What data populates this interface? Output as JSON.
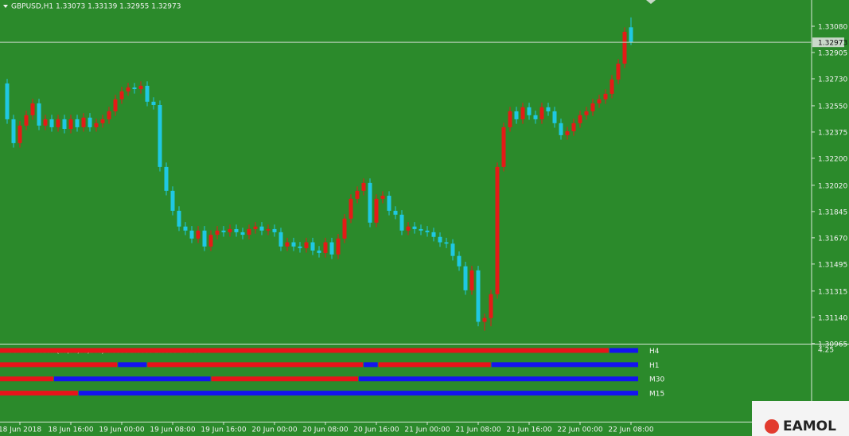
{
  "chart_data": [
    {
      "type": "candlestick",
      "title": "GBPUSD,H1  1.33073 1.33139 1.32955 1.32973",
      "up_color": "#e41b17",
      "down_color": "#1fc8e3",
      "categories": [
        null,
        null,
        "18 Jun 2018",
        null,
        null,
        null,
        null,
        null,
        null,
        null,
        "18 Jun 16:00",
        null,
        null,
        null,
        null,
        null,
        null,
        null,
        "19 Jun 00:00",
        null,
        null,
        null,
        null,
        null,
        null,
        null,
        "19 Jun 08:00",
        null,
        null,
        null,
        null,
        null,
        null,
        null,
        "19 Jun 16:00",
        null,
        null,
        null,
        null,
        null,
        null,
        null,
        "20 Jun 00:00",
        null,
        null,
        null,
        null,
        null,
        null,
        null,
        "20 Jun 08:00",
        null,
        null,
        null,
        null,
        null,
        null,
        null,
        "20 Jun 16:00",
        null,
        null,
        null,
        null,
        null,
        null,
        null,
        "21 Jun 00:00",
        null,
        null,
        null,
        null,
        null,
        null,
        null,
        "21 Jun 08:00",
        null,
        null,
        null,
        null,
        null,
        null,
        null,
        "21 Jun 16:00",
        null,
        null,
        null,
        null,
        null,
        null,
        null,
        "22 Jun 00:00",
        null,
        null,
        null,
        null,
        null,
        null,
        null,
        "22 Jun 08:00"
      ],
      "open": [
        1.32699,
        1.3246,
        1.32301,
        1.32418,
        1.32487,
        1.32566,
        1.32418,
        1.3246,
        1.32407,
        1.3246,
        1.32396,
        1.3246,
        1.32407,
        1.32471,
        1.32407,
        1.32434,
        1.3246,
        1.32513,
        1.32593,
        1.32646,
        1.32672,
        1.32661,
        1.32683,
        1.32577,
        1.32555,
        1.32142,
        1.31983,
        1.3185,
        1.31745,
        1.31718,
        1.31665,
        1.31718,
        1.31612,
        1.3169,
        1.31718,
        1.31707,
        1.31728,
        1.31707,
        1.3169,
        1.31728,
        1.31745,
        1.31718,
        1.31728,
        1.31707,
        1.31612,
        1.3164,
        1.31612,
        1.31601,
        1.3164,
        1.31585,
        1.31569,
        1.3164,
        1.31559,
        1.31665,
        1.31798,
        1.3193,
        1.31983,
        1.32036,
        1.31771,
        1.3193,
        1.3195,
        1.3185,
        1.31824,
        1.31718,
        1.31745,
        1.31728,
        1.31718,
        1.31707,
        1.31676,
        1.3164,
        1.31631,
        1.31549,
        1.3148,
        1.3132,
        1.31453,
        1.3111,
        1.31135,
        1.31294,
        1.32142,
        1.32407,
        1.32513,
        1.3246,
        1.3254,
        1.32487,
        1.3246,
        1.3254,
        1.32513,
        1.32434,
        1.32354,
        1.3238,
        1.32434,
        1.32487,
        1.32513,
        1.32566,
        1.32593,
        1.3263,
        1.32725,
        1.32831,
        1.33073
      ],
      "high": [
        1.32729,
        1.3249,
        1.32448,
        1.32517,
        1.32596,
        1.32596,
        1.3249,
        1.3249,
        1.3249,
        1.3249,
        1.3249,
        1.3249,
        1.32501,
        1.32501,
        1.32464,
        1.3249,
        1.32543,
        1.32623,
        1.32676,
        1.32702,
        1.32702,
        1.32713,
        1.32713,
        1.32607,
        1.32585,
        1.32172,
        1.32013,
        1.3188,
        1.31775,
        1.31748,
        1.31748,
        1.31748,
        1.3172,
        1.31748,
        1.31748,
        1.31758,
        1.31758,
        1.31737,
        1.31758,
        1.31775,
        1.31775,
        1.31758,
        1.31758,
        1.31737,
        1.3167,
        1.3167,
        1.31642,
        1.3167,
        1.3167,
        1.31615,
        1.3167,
        1.3167,
        1.31695,
        1.31828,
        1.3196,
        1.32013,
        1.32066,
        1.32066,
        1.3196,
        1.3198,
        1.3198,
        1.3188,
        1.31854,
        1.31775,
        1.31775,
        1.31758,
        1.31748,
        1.31737,
        1.31706,
        1.3167,
        1.31661,
        1.31579,
        1.3151,
        1.31483,
        1.31483,
        1.31165,
        1.31324,
        1.32172,
        1.32437,
        1.32543,
        1.32543,
        1.3257,
        1.3257,
        1.32517,
        1.3257,
        1.3257,
        1.32543,
        1.32464,
        1.3241,
        1.32464,
        1.32517,
        1.32543,
        1.32596,
        1.32623,
        1.3266,
        1.32755,
        1.32861,
        1.33073,
        1.33139
      ],
      "low": [
        1.3243,
        1.32271,
        1.32271,
        1.32388,
        1.32457,
        1.32388,
        1.32388,
        1.32377,
        1.32377,
        1.32366,
        1.32366,
        1.32377,
        1.32377,
        1.32377,
        1.32377,
        1.32404,
        1.3243,
        1.32483,
        1.32563,
        1.32616,
        1.32631,
        1.32631,
        1.32547,
        1.32525,
        1.32112,
        1.31953,
        1.3182,
        1.31715,
        1.31688,
        1.31635,
        1.31635,
        1.31582,
        1.31582,
        1.3166,
        1.31677,
        1.31677,
        1.31677,
        1.3166,
        1.3166,
        1.31698,
        1.31688,
        1.31688,
        1.31677,
        1.31582,
        1.31582,
        1.31582,
        1.31571,
        1.31571,
        1.31555,
        1.31539,
        1.31539,
        1.31529,
        1.31529,
        1.31635,
        1.31768,
        1.319,
        1.31953,
        1.31741,
        1.31741,
        1.319,
        1.3182,
        1.31794,
        1.31688,
        1.31688,
        1.31698,
        1.31688,
        1.31677,
        1.31646,
        1.3161,
        1.31601,
        1.31519,
        1.3145,
        1.3129,
        1.3129,
        1.3108,
        1.3105,
        1.3108,
        1.31264,
        1.32112,
        1.32377,
        1.3243,
        1.3243,
        1.32457,
        1.3243,
        1.3243,
        1.32483,
        1.32404,
        1.32324,
        1.32324,
        1.3235,
        1.32404,
        1.32457,
        1.32483,
        1.32536,
        1.32563,
        1.326,
        1.32695,
        1.32801,
        1.32955
      ],
      "close": [
        1.3246,
        1.32301,
        1.32418,
        1.32487,
        1.32566,
        1.32418,
        1.3246,
        1.32407,
        1.3246,
        1.32396,
        1.3246,
        1.32407,
        1.32471,
        1.32407,
        1.32434,
        1.3246,
        1.32513,
        1.32593,
        1.32646,
        1.32672,
        1.32661,
        1.32683,
        1.32577,
        1.32555,
        1.32142,
        1.31983,
        1.3185,
        1.31745,
        1.31718,
        1.31665,
        1.31718,
        1.31612,
        1.3169,
        1.31718,
        1.31707,
        1.31728,
        1.31707,
        1.3169,
        1.31728,
        1.31745,
        1.31718,
        1.31728,
        1.31707,
        1.31612,
        1.3164,
        1.31612,
        1.31601,
        1.3164,
        1.31585,
        1.31569,
        1.3164,
        1.31559,
        1.31665,
        1.31798,
        1.3193,
        1.31983,
        1.32036,
        1.31771,
        1.3193,
        1.3195,
        1.3185,
        1.31824,
        1.31718,
        1.31745,
        1.31728,
        1.31718,
        1.31707,
        1.31676,
        1.3164,
        1.31631,
        1.31549,
        1.3148,
        1.3132,
        1.31453,
        1.3111,
        1.31135,
        1.31294,
        1.32142,
        1.32407,
        1.32513,
        1.3246,
        1.3254,
        1.32487,
        1.3246,
        1.3254,
        1.32513,
        1.32434,
        1.32354,
        1.3238,
        1.32434,
        1.32487,
        1.32513,
        1.32566,
        1.32593,
        1.3263,
        1.32725,
        1.32831,
        1.33043,
        1.32973
      ],
      "ylim": [
        1.30964,
        1.33255
      ],
      "yticks": [
        {
          "value": 1.3308,
          "label": "1.33080"
        },
        1.32905,
        {
          "value": 1.3273,
          "label": "1.32730"
        },
        {
          "value": 1.3255,
          "label": "1.32550"
        },
        1.32375,
        {
          "value": 1.322,
          "label": "1.32200"
        },
        {
          "value": 1.3202,
          "label": "1.32020"
        },
        1.31845,
        {
          "value": 1.3167,
          "label": "1.31670"
        },
        1.31495,
        1.31315,
        {
          "value": 1.3114,
          "label": "1.31140"
        },
        1.30965
      ]
    },
    {
      "type": "signal_rows",
      "title": "Forex Freedom(15,30,60,240) 4.0000 3.0000 2.0000 1.0000",
      "ylim": [
        0,
        4.25
      ],
      "yticks": [
        4.25
      ],
      "rows": [
        {
          "name": "H4",
          "value": 4,
          "runs": [
            {
              "color": "#e8141a",
              "count": 124
            },
            {
              "color": "#1414f0",
              "count": 6
            }
          ]
        },
        {
          "name": "H1",
          "value": 3,
          "runs": [
            {
              "color": "#e8141a",
              "count": 24
            },
            {
              "color": "#1414f0",
              "count": 6
            },
            {
              "color": "#e8141a",
              "count": 44
            },
            {
              "color": "#1414f0",
              "count": 3
            },
            {
              "color": "#e8141a",
              "count": 23
            },
            {
              "color": "#1414f0",
              "count": 30
            }
          ]
        },
        {
          "name": "M30",
          "value": 2,
          "runs": [
            {
              "color": "#e8141a",
              "count": 11
            },
            {
              "color": "#1414f0",
              "count": 32
            },
            {
              "color": "#e8141a",
              "count": 30
            },
            {
              "color": "#1414f0",
              "count": 57
            }
          ]
        },
        {
          "name": "M15",
          "value": 1,
          "runs": [
            {
              "color": "#e8141a",
              "count": 16
            },
            {
              "color": "#1414f0",
              "count": 114
            }
          ]
        }
      ]
    }
  ],
  "watermark": "EAMOL"
}
